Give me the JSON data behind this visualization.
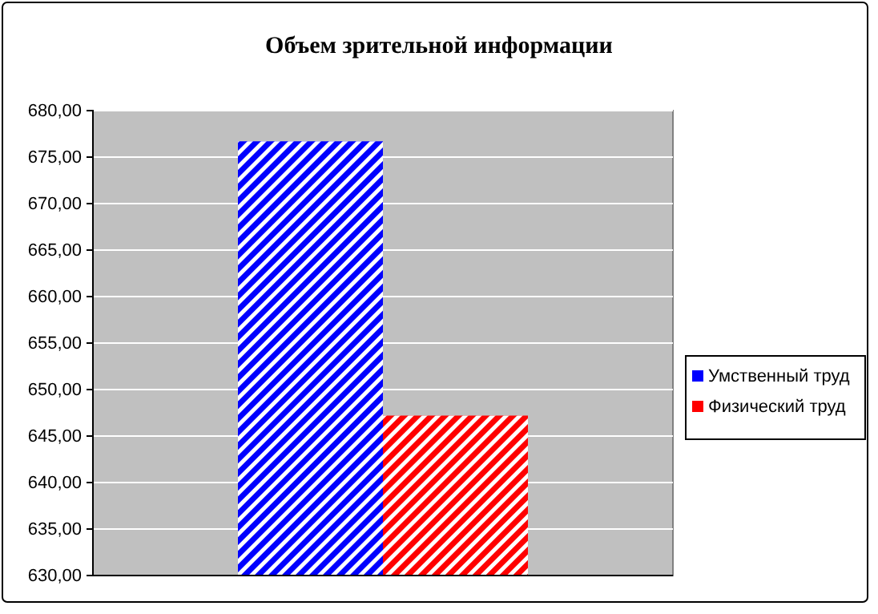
{
  "chart_data": {
    "type": "bar",
    "title": "Объем зрительной информации",
    "categories": [
      null
    ],
    "series": [
      {
        "name": "Умственный труд",
        "color": "#0000ff",
        "values": [
          676.7
        ]
      },
      {
        "name": "Физический труд",
        "color": "#ff0000",
        "values": [
          647.2
        ]
      }
    ],
    "ylim": [
      630,
      680
    ],
    "yticks": [
      {
        "value": 630,
        "label": "630,00"
      },
      {
        "value": 635,
        "label": "635,00"
      },
      {
        "value": 640,
        "label": "640,00"
      },
      {
        "value": 645,
        "label": "645,00"
      },
      {
        "value": 650,
        "label": "650,00"
      },
      {
        "value": 655,
        "label": "655,00"
      },
      {
        "value": 660,
        "label": "660,00"
      },
      {
        "value": 665,
        "label": "665,00"
      },
      {
        "value": 670,
        "label": "670,00"
      },
      {
        "value": 675,
        "label": "675,00"
      },
      {
        "value": 680,
        "label": "680,00"
      }
    ],
    "grid": "y",
    "legend": "right"
  }
}
